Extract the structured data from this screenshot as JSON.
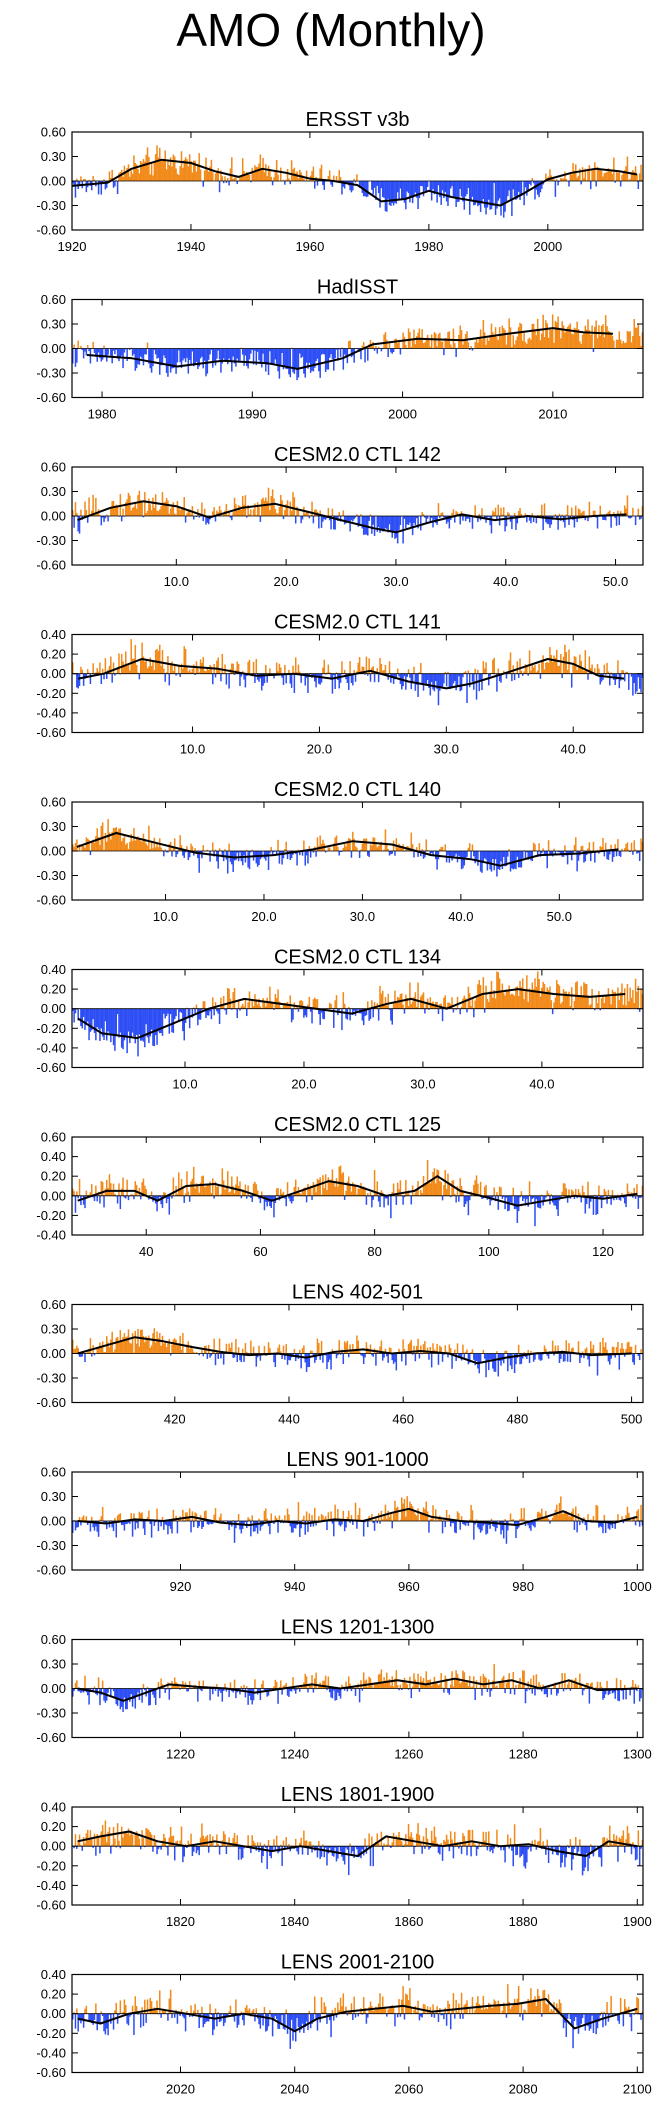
{
  "figure": {
    "title": "AMO (Monthly)",
    "colors": {
      "positive": "#f28a1a",
      "negative": "#2d4ef5",
      "smooth": "#000000",
      "axis": "#000000"
    }
  },
  "chart_data": [
    {
      "type": "bar",
      "title": "ERSST v3b",
      "xlim": [
        1920,
        2016
      ],
      "ylim": [
        -0.6,
        0.6
      ],
      "yticks": [
        0.6,
        0.3,
        0.0,
        -0.3,
        -0.6
      ],
      "ytick_labels": [
        "0.60",
        "0.30",
        "0.00",
        "-0.30",
        "-0.60"
      ],
      "xticks": [
        1920,
        1940,
        1960,
        1980,
        2000
      ],
      "xtick_labels": [
        "1920",
        "1940",
        "1960",
        "1980",
        "2000"
      ],
      "smooth": [
        [
          1920,
          -0.06
        ],
        [
          1926,
          -0.02
        ],
        [
          1930,
          0.15
        ],
        [
          1935,
          0.26
        ],
        [
          1940,
          0.22
        ],
        [
          1944,
          0.12
        ],
        [
          1948,
          0.05
        ],
        [
          1952,
          0.15
        ],
        [
          1956,
          0.1
        ],
        [
          1960,
          0.03
        ],
        [
          1964,
          0.0
        ],
        [
          1968,
          -0.05
        ],
        [
          1972,
          -0.25
        ],
        [
          1976,
          -0.22
        ],
        [
          1980,
          -0.12
        ],
        [
          1984,
          -0.2
        ],
        [
          1988,
          -0.25
        ],
        [
          1992,
          -0.3
        ],
        [
          1996,
          -0.15
        ],
        [
          2000,
          0.02
        ],
        [
          2004,
          0.1
        ],
        [
          2008,
          0.15
        ],
        [
          2012,
          0.12
        ],
        [
          2015,
          0.08
        ]
      ]
    },
    {
      "type": "bar",
      "title": "HadISST",
      "xlim": [
        1978,
        2016
      ],
      "ylim": [
        -0.6,
        0.6
      ],
      "yticks": [
        0.6,
        0.3,
        0.0,
        -0.3,
        -0.6
      ],
      "ytick_labels": [
        "0.60",
        "0.30",
        "0.00",
        "-0.30",
        "-0.60"
      ],
      "xticks": [
        1980,
        1990,
        2000,
        2010
      ],
      "xtick_labels": [
        "1980",
        "1990",
        "2000",
        "2010"
      ],
      "smooth": [
        [
          1979,
          -0.08
        ],
        [
          1982,
          -0.12
        ],
        [
          1985,
          -0.22
        ],
        [
          1988,
          -0.15
        ],
        [
          1991,
          -0.18
        ],
        [
          1993,
          -0.25
        ],
        [
          1996,
          -0.12
        ],
        [
          1998,
          0.05
        ],
        [
          2001,
          0.12
        ],
        [
          2004,
          0.1
        ],
        [
          2007,
          0.18
        ],
        [
          2010,
          0.25
        ],
        [
          2012,
          0.2
        ],
        [
          2014,
          0.18
        ]
      ]
    },
    {
      "type": "bar",
      "title": "CESM2.0 CTL 142",
      "xlim": [
        0.5,
        52.5
      ],
      "ylim": [
        -0.6,
        0.6
      ],
      "yticks": [
        0.6,
        0.3,
        0.0,
        -0.3,
        -0.6
      ],
      "ytick_labels": [
        "0.60",
        "0.30",
        "0.00",
        "-0.30",
        "-0.60"
      ],
      "xticks": [
        10,
        20,
        30,
        40,
        50
      ],
      "xtick_labels": [
        "10.0",
        "20.0",
        "30.0",
        "40.0",
        "50.0"
      ],
      "smooth": [
        [
          1,
          -0.05
        ],
        [
          4,
          0.1
        ],
        [
          7,
          0.18
        ],
        [
          10,
          0.12
        ],
        [
          13,
          -0.02
        ],
        [
          16,
          0.1
        ],
        [
          19,
          0.15
        ],
        [
          22,
          0.05
        ],
        [
          25,
          -0.05
        ],
        [
          28,
          -0.15
        ],
        [
          30,
          -0.2
        ],
        [
          33,
          -0.08
        ],
        [
          36,
          0.02
        ],
        [
          39,
          -0.05
        ],
        [
          42,
          0.0
        ],
        [
          45,
          -0.04
        ],
        [
          48,
          0.0
        ],
        [
          51,
          0.02
        ]
      ]
    },
    {
      "type": "bar",
      "title": "CESM2.0 CTL 141",
      "xlim": [
        0.5,
        45.5
      ],
      "ylim": [
        -0.6,
        0.4
      ],
      "yticks": [
        0.4,
        0.2,
        0.0,
        -0.2,
        -0.4,
        -0.6
      ],
      "ytick_labels": [
        "0.40",
        "0.20",
        "0.00",
        "-0.20",
        "-0.40",
        "-0.60"
      ],
      "xticks": [
        10,
        20,
        30,
        40
      ],
      "xtick_labels": [
        "10.0",
        "20.0",
        "30.0",
        "40.0"
      ],
      "smooth": [
        [
          1,
          -0.05
        ],
        [
          3,
          0.0
        ],
        [
          6,
          0.15
        ],
        [
          9,
          0.08
        ],
        [
          12,
          0.05
        ],
        [
          15,
          -0.02
        ],
        [
          18,
          0.0
        ],
        [
          21,
          -0.05
        ],
        [
          24,
          0.03
        ],
        [
          27,
          -0.08
        ],
        [
          30,
          -0.15
        ],
        [
          32,
          -0.1
        ],
        [
          35,
          0.02
        ],
        [
          38,
          0.15
        ],
        [
          40,
          0.1
        ],
        [
          42,
          -0.02
        ],
        [
          44,
          -0.05
        ]
      ]
    },
    {
      "type": "bar",
      "title": "CESM2.0 CTL 140",
      "xlim": [
        0.5,
        58.5
      ],
      "ylim": [
        -0.6,
        0.6
      ],
      "yticks": [
        0.6,
        0.3,
        0.0,
        -0.3,
        -0.6
      ],
      "ytick_labels": [
        "0.60",
        "0.30",
        "0.00",
        "-0.30",
        "-0.60"
      ],
      "xticks": [
        10,
        20,
        30,
        40,
        50
      ],
      "xtick_labels": [
        "10.0",
        "20.0",
        "30.0",
        "40.0",
        "50.0"
      ],
      "smooth": [
        [
          1,
          0.05
        ],
        [
          5,
          0.22
        ],
        [
          9,
          0.1
        ],
        [
          13,
          -0.02
        ],
        [
          17,
          -0.08
        ],
        [
          21,
          -0.05
        ],
        [
          25,
          0.02
        ],
        [
          29,
          0.12
        ],
        [
          33,
          0.08
        ],
        [
          37,
          -0.05
        ],
        [
          41,
          -0.1
        ],
        [
          44,
          -0.18
        ],
        [
          48,
          -0.05
        ],
        [
          52,
          -0.03
        ],
        [
          56,
          0.02
        ]
      ]
    },
    {
      "type": "bar",
      "title": "CESM2.0 CTL 134",
      "xlim": [
        0.5,
        48.5
      ],
      "ylim": [
        -0.6,
        0.4
      ],
      "yticks": [
        0.4,
        0.2,
        0.0,
        -0.2,
        -0.4,
        -0.6
      ],
      "ytick_labels": [
        "0.40",
        "0.20",
        "0.00",
        "-0.20",
        "-0.40",
        "-0.60"
      ],
      "xticks": [
        10,
        20,
        30,
        40
      ],
      "xtick_labels": [
        "10.0",
        "20.0",
        "30.0",
        "40.0"
      ],
      "smooth": [
        [
          1,
          -0.1
        ],
        [
          3,
          -0.25
        ],
        [
          6,
          -0.3
        ],
        [
          9,
          -0.15
        ],
        [
          12,
          0.0
        ],
        [
          15,
          0.1
        ],
        [
          18,
          0.05
        ],
        [
          21,
          0.0
        ],
        [
          24,
          -0.05
        ],
        [
          27,
          0.05
        ],
        [
          29,
          0.1
        ],
        [
          32,
          0.0
        ],
        [
          35,
          0.15
        ],
        [
          38,
          0.2
        ],
        [
          41,
          0.15
        ],
        [
          44,
          0.12
        ],
        [
          47,
          0.15
        ]
      ]
    },
    {
      "type": "bar",
      "title": "CESM2.0 CTL 125",
      "xlim": [
        27,
        127
      ],
      "ylim": [
        -0.4,
        0.6
      ],
      "yticks": [
        0.6,
        0.4,
        0.2,
        0.0,
        -0.2,
        -0.4
      ],
      "ytick_labels": [
        "0.60",
        "0.40",
        "0.20",
        "0.00",
        "-0.20",
        "-0.40"
      ],
      "xticks": [
        40,
        60,
        80,
        100,
        120
      ],
      "xtick_labels": [
        "40",
        "60",
        "80",
        "100",
        "120"
      ],
      "smooth": [
        [
          28,
          -0.05
        ],
        [
          33,
          0.05
        ],
        [
          38,
          0.05
        ],
        [
          42,
          -0.05
        ],
        [
          47,
          0.1
        ],
        [
          52,
          0.12
        ],
        [
          57,
          0.05
        ],
        [
          62,
          -0.05
        ],
        [
          67,
          0.05
        ],
        [
          72,
          0.15
        ],
        [
          77,
          0.1
        ],
        [
          82,
          0.0
        ],
        [
          87,
          0.05
        ],
        [
          91,
          0.2
        ],
        [
          95,
          0.05
        ],
        [
          100,
          -0.02
        ],
        [
          105,
          -0.1
        ],
        [
          110,
          -0.05
        ],
        [
          115,
          0.0
        ],
        [
          120,
          -0.03
        ],
        [
          126,
          0.02
        ]
      ]
    },
    {
      "type": "bar",
      "title": "LENS 402-501",
      "xlim": [
        402,
        502
      ],
      "ylim": [
        -0.6,
        0.6
      ],
      "yticks": [
        0.6,
        0.3,
        0.0,
        -0.3,
        -0.6
      ],
      "ytick_labels": [
        "0.60",
        "0.30",
        "0.00",
        "-0.30",
        "-0.60"
      ],
      "xticks": [
        420,
        440,
        460,
        480,
        500
      ],
      "xtick_labels": [
        "420",
        "440",
        "460",
        "480",
        "500"
      ],
      "smooth": [
        [
          403,
          0.0
        ],
        [
          408,
          0.1
        ],
        [
          413,
          0.2
        ],
        [
          418,
          0.15
        ],
        [
          423,
          0.08
        ],
        [
          428,
          0.02
        ],
        [
          433,
          -0.02
        ],
        [
          438,
          0.0
        ],
        [
          443,
          -0.05
        ],
        [
          448,
          0.02
        ],
        [
          453,
          0.05
        ],
        [
          458,
          0.0
        ],
        [
          463,
          0.03
        ],
        [
          468,
          0.0
        ],
        [
          473,
          -0.12
        ],
        [
          478,
          -0.05
        ],
        [
          483,
          0.0
        ],
        [
          488,
          0.02
        ],
        [
          493,
          -0.02
        ],
        [
          500,
          0.0
        ]
      ]
    },
    {
      "type": "bar",
      "title": "LENS 901-1000",
      "xlim": [
        901,
        1001
      ],
      "ylim": [
        -0.6,
        0.6
      ],
      "yticks": [
        0.6,
        0.3,
        0.0,
        -0.3,
        -0.6
      ],
      "ytick_labels": [
        "0.60",
        "0.30",
        "0.00",
        "-0.30",
        "-0.60"
      ],
      "xticks": [
        920,
        940,
        960,
        980,
        1000
      ],
      "xtick_labels": [
        "920",
        "940",
        "960",
        "980",
        "1000"
      ],
      "smooth": [
        [
          902,
          0.0
        ],
        [
          907,
          -0.03
        ],
        [
          912,
          0.02
        ],
        [
          917,
          0.0
        ],
        [
          922,
          0.05
        ],
        [
          927,
          -0.02
        ],
        [
          932,
          -0.05
        ],
        [
          937,
          0.0
        ],
        [
          942,
          -0.03
        ],
        [
          947,
          0.02
        ],
        [
          952,
          0.0
        ],
        [
          957,
          0.1
        ],
        [
          960,
          0.15
        ],
        [
          964,
          0.05
        ],
        [
          969,
          0.0
        ],
        [
          974,
          -0.02
        ],
        [
          979,
          -0.05
        ],
        [
          984,
          0.05
        ],
        [
          987,
          0.12
        ],
        [
          991,
          0.0
        ],
        [
          996,
          -0.02
        ],
        [
          1000,
          0.05
        ]
      ]
    },
    {
      "type": "bar",
      "title": "LENS 1201-1300",
      "xlim": [
        1201,
        1301
      ],
      "ylim": [
        -0.6,
        0.6
      ],
      "yticks": [
        0.6,
        0.3,
        0.0,
        -0.3,
        -0.6
      ],
      "ytick_labels": [
        "0.60",
        "0.30",
        "0.00",
        "-0.30",
        "-0.60"
      ],
      "xticks": [
        1220,
        1240,
        1260,
        1280,
        1300
      ],
      "xtick_labels": [
        "1220",
        "1240",
        "1260",
        "1280",
        "1300"
      ],
      "smooth": [
        [
          1202,
          0.0
        ],
        [
          1206,
          -0.05
        ],
        [
          1210,
          -0.15
        ],
        [
          1214,
          -0.05
        ],
        [
          1218,
          0.05
        ],
        [
          1223,
          0.02
        ],
        [
          1228,
          0.0
        ],
        [
          1233,
          -0.05
        ],
        [
          1238,
          0.0
        ],
        [
          1243,
          0.05
        ],
        [
          1248,
          0.0
        ],
        [
          1253,
          0.05
        ],
        [
          1258,
          0.1
        ],
        [
          1263,
          0.05
        ],
        [
          1268,
          0.12
        ],
        [
          1273,
          0.05
        ],
        [
          1278,
          0.1
        ],
        [
          1283,
          0.0
        ],
        [
          1288,
          0.1
        ],
        [
          1293,
          -0.02
        ],
        [
          1300,
          0.0
        ]
      ]
    },
    {
      "type": "bar",
      "title": "LENS 1801-1900",
      "xlim": [
        1801,
        1901
      ],
      "ylim": [
        -0.6,
        0.4
      ],
      "yticks": [
        0.4,
        0.2,
        0.0,
        -0.2,
        -0.4,
        -0.6
      ],
      "ytick_labels": [
        "0.40",
        "0.20",
        "0.00",
        "-0.20",
        "-0.40",
        "-0.60"
      ],
      "xticks": [
        1820,
        1840,
        1860,
        1880,
        1900
      ],
      "xtick_labels": [
        "1820",
        "1840",
        "1860",
        "1880",
        "1900"
      ],
      "smooth": [
        [
          1802,
          0.05
        ],
        [
          1806,
          0.1
        ],
        [
          1811,
          0.15
        ],
        [
          1816,
          0.05
        ],
        [
          1821,
          0.0
        ],
        [
          1826,
          0.05
        ],
        [
          1831,
          0.0
        ],
        [
          1836,
          -0.05
        ],
        [
          1841,
          0.0
        ],
        [
          1846,
          -0.05
        ],
        [
          1851,
          -0.1
        ],
        [
          1856,
          0.1
        ],
        [
          1861,
          0.05
        ],
        [
          1866,
          0.0
        ],
        [
          1871,
          0.05
        ],
        [
          1876,
          0.0
        ],
        [
          1881,
          0.02
        ],
        [
          1886,
          -0.05
        ],
        [
          1891,
          -0.1
        ],
        [
          1895,
          0.05
        ],
        [
          1900,
          0.0
        ]
      ]
    },
    {
      "type": "bar",
      "title": "LENS 2001-2100",
      "xlim": [
        2001,
        2101
      ],
      "ylim": [
        -0.6,
        0.4
      ],
      "yticks": [
        0.4,
        0.2,
        0.0,
        -0.2,
        -0.4,
        -0.6
      ],
      "ytick_labels": [
        "0.40",
        "0.20",
        "0.00",
        "-0.20",
        "-0.40",
        "-0.60"
      ],
      "xticks": [
        2020,
        2040,
        2060,
        2080,
        2100
      ],
      "xtick_labels": [
        "2020",
        "2040",
        "2060",
        "2080",
        "2100"
      ],
      "smooth": [
        [
          2002,
          -0.05
        ],
        [
          2006,
          -0.1
        ],
        [
          2011,
          0.0
        ],
        [
          2016,
          0.05
        ],
        [
          2021,
          0.0
        ],
        [
          2026,
          -0.05
        ],
        [
          2031,
          0.0
        ],
        [
          2036,
          -0.05
        ],
        [
          2040,
          -0.18
        ],
        [
          2044,
          -0.05
        ],
        [
          2049,
          0.02
        ],
        [
          2054,
          0.05
        ],
        [
          2059,
          0.08
        ],
        [
          2064,
          0.02
        ],
        [
          2069,
          0.05
        ],
        [
          2074,
          0.08
        ],
        [
          2079,
          0.1
        ],
        [
          2084,
          0.15
        ],
        [
          2089,
          -0.15
        ],
        [
          2094,
          -0.05
        ],
        [
          2100,
          0.05
        ]
      ]
    }
  ]
}
